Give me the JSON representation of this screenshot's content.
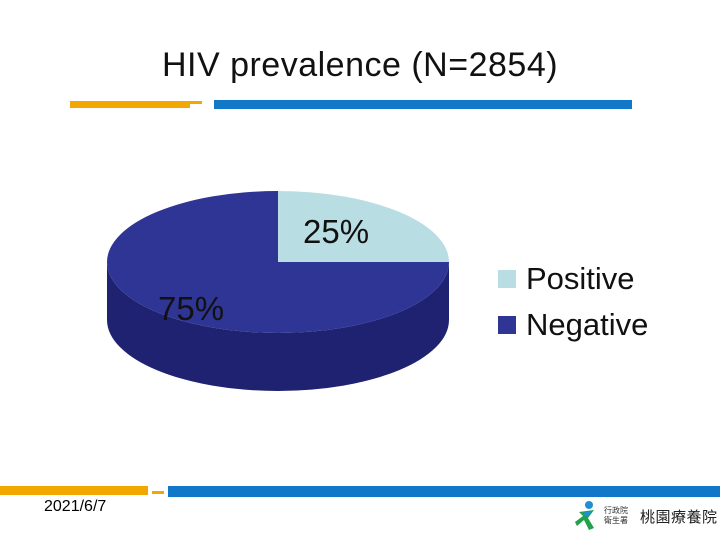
{
  "chart_data": {
    "type": "pie",
    "title": "HIV prevalence (N=2854)",
    "categories": [
      "Positive",
      "Negative"
    ],
    "values": [
      25,
      75
    ],
    "value_labels": [
      "25%",
      "75%"
    ],
    "colors": [
      "#b8dde3",
      "#2f3595"
    ],
    "legend_position": "right"
  },
  "footer": {
    "date": "2021/6/7",
    "org_small_line1": "行政院",
    "org_small_line2": "衛生署",
    "hospital_name": "桃園療養院"
  },
  "colors": {
    "accent_orange": "#f2a800",
    "accent_blue": "#1178c8",
    "pie_side": "#1e2270"
  }
}
